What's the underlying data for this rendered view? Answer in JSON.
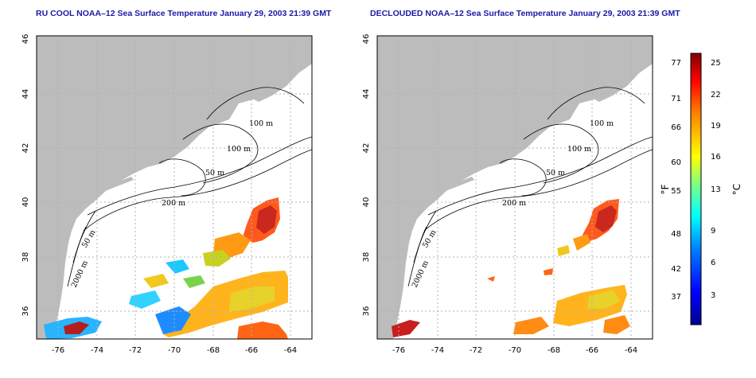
{
  "left_panel": {
    "title": "RU COOL NOAA–12 Sea Surface Temperature January 29, 2003 21:39 GMT"
  },
  "right_panel": {
    "title": "DECLOUDED NOAA–12 Sea Surface Temperature January 29, 2003 21:39 GMT"
  },
  "map_axes": {
    "lon_ticks": [
      "-76",
      "-74",
      "-72",
      "-70",
      "-68",
      "-66",
      "-64"
    ],
    "lat_ticks": [
      "46",
      "44",
      "42",
      "40",
      "38",
      "36"
    ],
    "lon_range": [
      -77.2,
      -62.9
    ],
    "lat_range": [
      35,
      46
    ],
    "grid": true
  },
  "contour_labels": [
    "100 m",
    "100 m",
    "50 m",
    "200 m",
    "50 m",
    "2000 m"
  ],
  "colorbar": {
    "f_ticks": [
      "77",
      "71",
      "66",
      "60",
      "55",
      "48",
      "42",
      "37"
    ],
    "c_ticks": [
      "25",
      "22",
      "19",
      "16",
      "13",
      "9",
      "6",
      "3"
    ],
    "f_label": "°F",
    "c_label": "°C",
    "colors": [
      "#00008f",
      "#0000ff",
      "#0080ff",
      "#00ffff",
      "#80ff80",
      "#ffff00",
      "#ff8000",
      "#ff0000",
      "#800000"
    ]
  },
  "colors": {
    "land": "#bcbcbc",
    "ocean": "#ffffff",
    "title": "#1a1aa8",
    "grid": "#b0b0b0",
    "contour": "#000000"
  }
}
